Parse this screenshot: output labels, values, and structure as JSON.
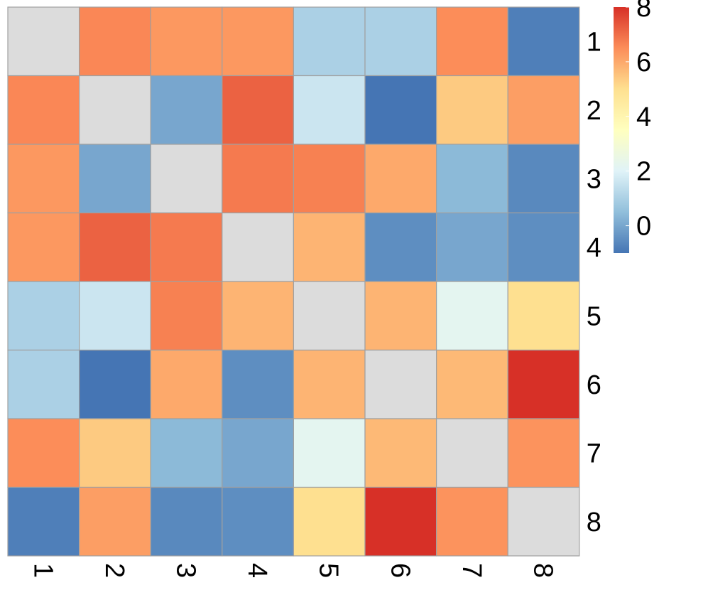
{
  "chart_data": {
    "type": "heatmap",
    "title": "",
    "xlabel": "",
    "ylabel": "",
    "x_labels": [
      "1",
      "2",
      "3",
      "4",
      "5",
      "6",
      "7",
      "8"
    ],
    "y_labels": [
      "1",
      "2",
      "3",
      "4",
      "5",
      "6",
      "7",
      "8"
    ],
    "values": [
      [
        3.0,
        6.6,
        6.3,
        6.3,
        1.0,
        1.0,
        6.5,
        -0.8
      ],
      [
        6.6,
        3.0,
        0.0,
        7.2,
        1.6,
        -1.0,
        5.4,
        6.2
      ],
      [
        6.3,
        0.0,
        3.0,
        6.8,
        6.7,
        6.0,
        0.4,
        -0.6
      ],
      [
        6.3,
        7.2,
        6.8,
        3.0,
        5.8,
        -0.5,
        0.0,
        -0.5
      ],
      [
        1.0,
        1.6,
        6.7,
        5.8,
        3.0,
        5.8,
        2.2,
        5.0
      ],
      [
        1.0,
        -1.0,
        6.0,
        -0.5,
        5.8,
        3.0,
        5.7,
        8.0
      ],
      [
        6.5,
        5.4,
        0.4,
        0.0,
        2.2,
        5.7,
        3.0,
        6.4
      ],
      [
        -0.8,
        6.2,
        -0.6,
        -0.5,
        5.0,
        8.0,
        6.4,
        3.0
      ]
    ],
    "diagonal_color": "#dcdcdc",
    "colorbar": {
      "min": -1.0,
      "max": 8.0,
      "ticks": [
        "0",
        "2",
        "4",
        "6",
        "8"
      ],
      "tick_values": [
        0,
        2,
        4,
        6,
        8
      ],
      "colors": [
        "#4575b4",
        "#91bfdb",
        "#e0f3f8",
        "#ffffbf",
        "#fee090",
        "#fc8d59",
        "#d73027"
      ]
    },
    "grid": true,
    "cell_border_color": "#a0a0a0"
  }
}
